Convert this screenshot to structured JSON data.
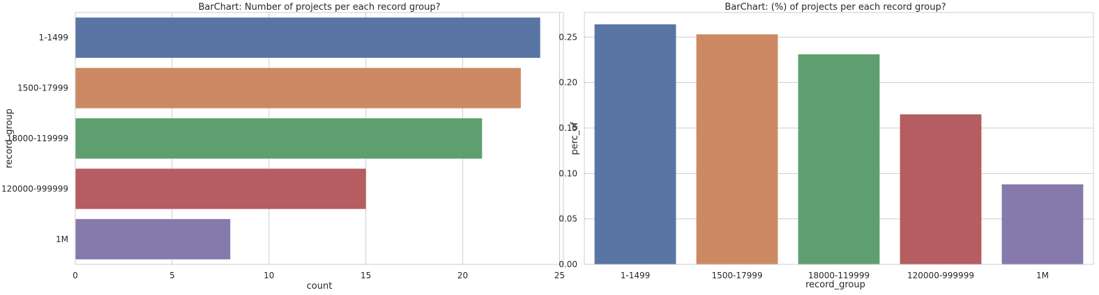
{
  "chart_data": [
    {
      "type": "bar",
      "orientation": "horizontal",
      "title": "BarChart: Number of projects per each record group?",
      "xlabel": "count",
      "ylabel": "record_group",
      "categories": [
        "1-1499",
        "1500-17999",
        "18000-119999",
        "120000-999999",
        "1M"
      ],
      "values": [
        24,
        23,
        21,
        15,
        8
      ],
      "xlim": [
        0,
        25.2
      ],
      "xticks": [
        0,
        5,
        10,
        15,
        20,
        25
      ],
      "grid": true,
      "colors": [
        "#5875a4",
        "#cc8963",
        "#5f9e6e",
        "#b55d60",
        "#857aab"
      ]
    },
    {
      "type": "bar",
      "orientation": "vertical",
      "title": "BarChart: (%) of projects per each record group?",
      "xlabel": "record_group",
      "ylabel": "perc_of",
      "categories": [
        "1-1499",
        "1500-17999",
        "18000-119999",
        "120000-999999",
        "1M"
      ],
      "values": [
        0.264,
        0.253,
        0.231,
        0.165,
        0.088
      ],
      "ylim": [
        0,
        0.277
      ],
      "yticks": [
        "0.00",
        "0.05",
        "0.10",
        "0.15",
        "0.20",
        "0.25"
      ],
      "grid": true,
      "colors": [
        "#5875a4",
        "#cc8963",
        "#5f9e6e",
        "#b55d60",
        "#857aab"
      ]
    }
  ]
}
